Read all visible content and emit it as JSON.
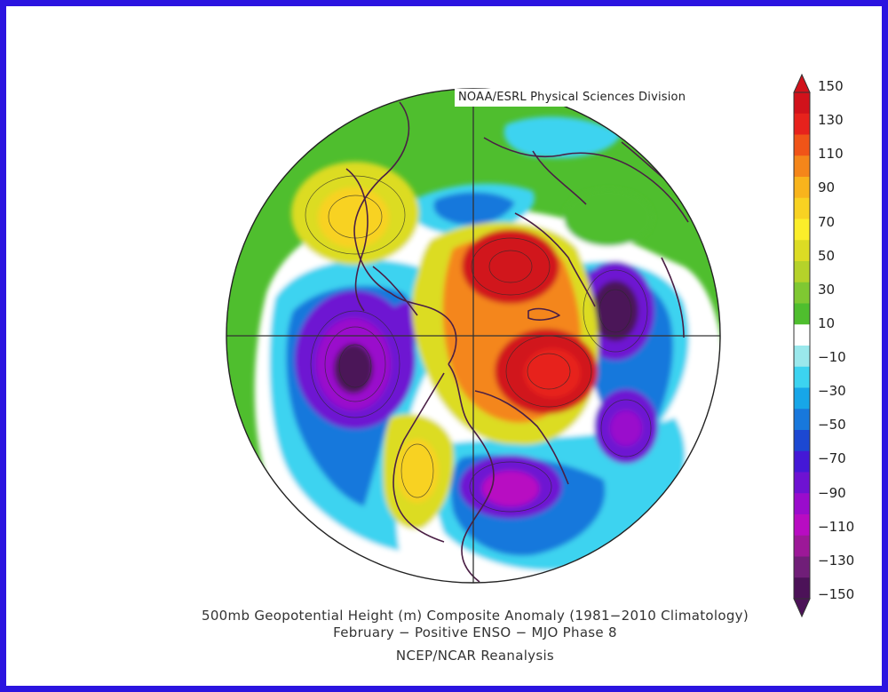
{
  "credit": "NOAA/ESRL Physical Sciences Division",
  "caption": {
    "line1": "500mb Geopotential Height (m) Composite Anomaly (1981−2010 Climatology)",
    "line2": "February − Positive ENSO − MJO Phase 8",
    "line3": "NCEP/NCAR Reanalysis"
  },
  "colorbar": {
    "labels": [
      "150",
      "130",
      "110",
      "90",
      "70",
      "50",
      "30",
      "10",
      "−10",
      "−30",
      "−50",
      "−70",
      "−90",
      "−110",
      "−130",
      "−150"
    ],
    "colors": [
      "#d1121b",
      "#e7221c",
      "#f05418",
      "#f4861a",
      "#f8b41c",
      "#f8d222",
      "#fbee2a",
      "#dcdc24",
      "#b5d22a",
      "#7fc832",
      "#4fbe2e",
      "#ffffff",
      "#9ae8ec",
      "#3cd3f0",
      "#17a6e8",
      "#1878dc",
      "#1c48d2",
      "#4418d6",
      "#6e12d2",
      "#9a0ccc",
      "#b80cc2",
      "#9c1898",
      "#701e78",
      "#4c1258"
    ]
  },
  "legend_colors": {
    "frame": "#2b14e0",
    "green": "#4fbe2e",
    "white": "#ffffff",
    "cyan": "#3cd3f0",
    "blue": "#1878dc",
    "violet": "#6e12d2",
    "purple": "#9a0ccc",
    "deep-purple": "#4c1258",
    "yellow": "#f8d222",
    "orange": "#f4861a",
    "red": "#d1121b"
  }
}
